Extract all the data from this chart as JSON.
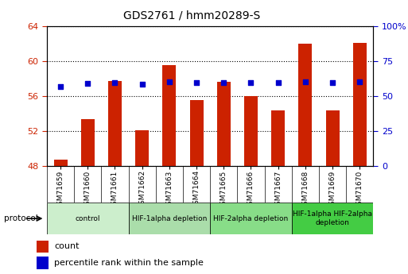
{
  "title": "GDS2761 / hmm20289-S",
  "samples": [
    "GSM71659",
    "GSM71660",
    "GSM71661",
    "GSM71662",
    "GSM71663",
    "GSM71664",
    "GSM71665",
    "GSM71666",
    "GSM71667",
    "GSM71668",
    "GSM71669",
    "GSM71670"
  ],
  "counts": [
    48.7,
    53.3,
    57.7,
    52.1,
    59.5,
    55.5,
    57.6,
    56.0,
    54.3,
    62.0,
    54.3,
    62.1
  ],
  "percentile_ranks": [
    56.5,
    59.0,
    59.7,
    58.6,
    59.9,
    59.4,
    59.8,
    59.7,
    59.4,
    59.9,
    59.3,
    59.9
  ],
  "ylim_left": [
    48,
    64
  ],
  "ylim_right": [
    0,
    100
  ],
  "yticks_left": [
    48,
    52,
    56,
    60,
    64
  ],
  "ytick_labels_right": [
    "0",
    "25",
    "50",
    "75",
    "100%"
  ],
  "yticks_right": [
    0,
    25,
    50,
    75,
    100
  ],
  "bar_color": "#cc2200",
  "dot_color": "#0000cc",
  "protocol_groups": [
    {
      "label": "control",
      "start": 0,
      "end": 2,
      "color": "#cceecc"
    },
    {
      "label": "HIF-1alpha depletion",
      "start": 3,
      "end": 5,
      "color": "#aaddaa"
    },
    {
      "label": "HIF-2alpha depletion",
      "start": 6,
      "end": 8,
      "color": "#88dd88"
    },
    {
      "label": "HIF-1alpha HIF-2alpha\ndepletion",
      "start": 9,
      "end": 11,
      "color": "#44cc44"
    }
  ],
  "protocol_label": "protocol",
  "legend_count_label": "count",
  "legend_pct_label": "percentile rank within the sample",
  "tick_color_left": "#cc2200",
  "tick_color_right": "#0000cc",
  "bar_width": 0.5,
  "xticklabel_bg": "#dddddd",
  "fig_bg": "#ffffff"
}
